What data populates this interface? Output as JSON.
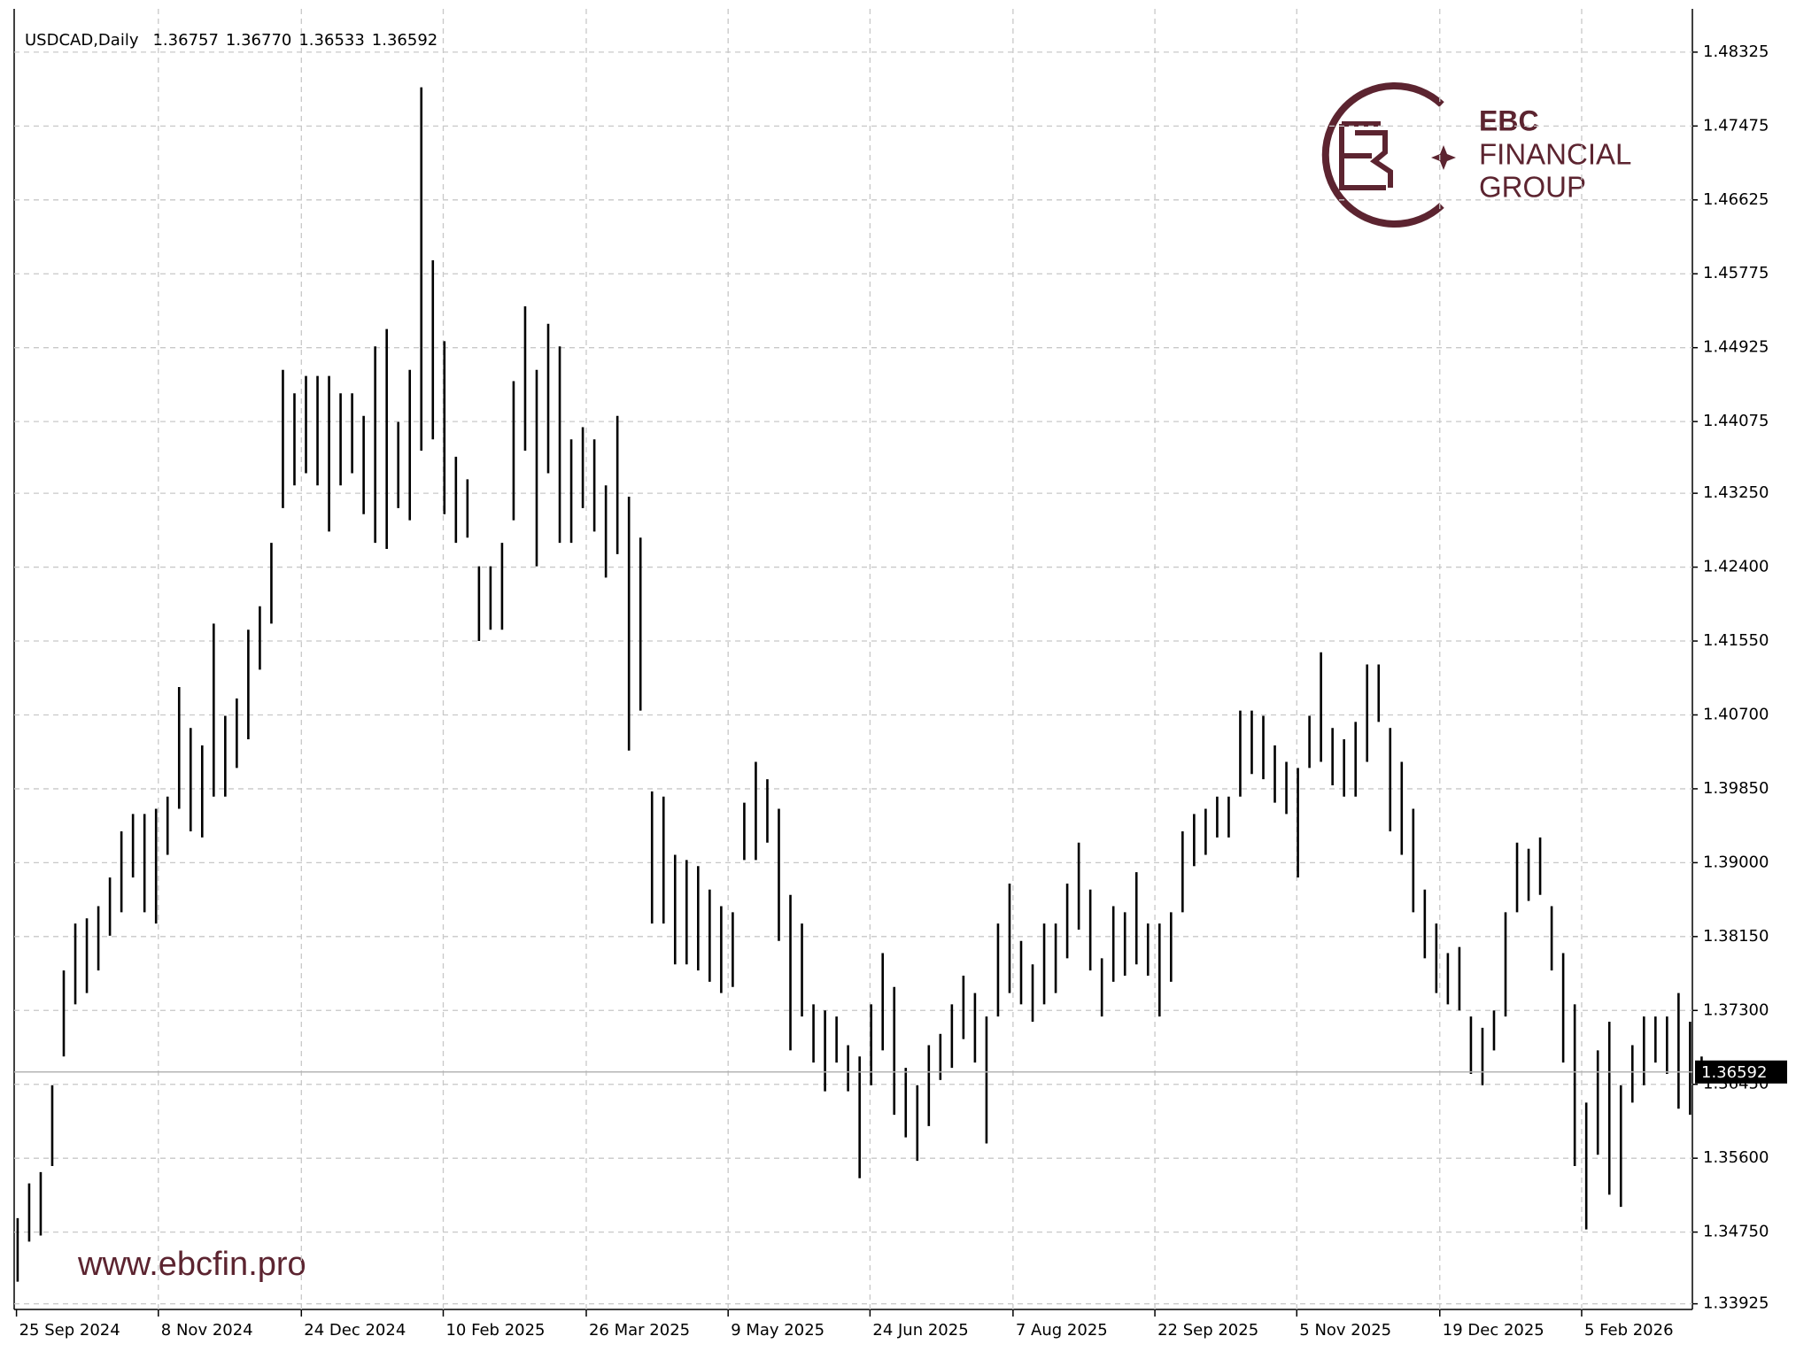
{
  "chart_data": {
    "type": "ohlc",
    "title": "USDCAD,Daily",
    "ohlc": [
      1.36757,
      {
        "value": 1.3677,
        "label": "1.36770"
      },
      1.36533,
      1.36592
    ],
    "watermark": {
      "brand": "EBC",
      "line2": "FINANCIAL",
      "line3": "GROUP",
      "url": "www.ebcfin.pro"
    },
    "high": [
      1.3491,
      1.3531,
      1.3544,
      1.3644,
      1.3776,
      1.383,
      1.3836,
      1.385,
      1.3883,
      1.3936,
      1.3956,
      1.3956,
      1.3962,
      1.3976,
      1.4102,
      1.4055,
      1.4035,
      1.4175,
      1.4069,
      1.4089,
      1.4168,
      1.4195,
      1.4268,
      1.4467,
      1.444,
      1.446,
      1.446,
      1.446,
      1.444,
      1.444,
      1.4414,
      1.4494,
      1.4514,
      1.4407,
      1.4467,
      1.4792,
      1.4593,
      1.45,
      1.4367,
      1.4341,
      1.4241,
      1.4241,
      1.4268,
      1.4454,
      1.454,
      1.4467,
      1.452,
      1.4494,
      1.4387,
      1.4401,
      1.4387,
      1.4334,
      1.4414,
      1.4321,
      1.4274,
      1.3982,
      1.3976,
      1.3909,
      1.3903,
      1.3896,
      1.3869,
      1.385,
      1.3843,
      1.3969,
      1.4016,
      1.3996,
      1.3962,
      1.3863,
      1.383,
      1.3737,
      1.373,
      1.3723,
      1.369,
      1.3677,
      1.3737,
      1.3796,
      1.3757,
      1.3664,
      1.3644,
      1.369,
      1.3703,
      1.3737,
      1.377,
      1.375,
      1.3723,
      1.383,
      1.3876,
      1.381,
      1.3783,
      1.383,
      1.383,
      1.3876,
      1.3923,
      1.3869,
      1.379,
      1.385,
      1.3843,
      1.3889,
      1.383,
      1.383,
      1.3843,
      1.3936,
      1.3956,
      1.3962,
      1.3976,
      1.3976,
      1.4075,
      1.4075,
      1.4069,
      1.4035,
      1.4016,
      1.4009,
      1.4069,
      1.4142,
      1.4055,
      1.4042,
      1.4062,
      1.4128,
      1.4128,
      1.4055,
      1.4016,
      1.3962,
      1.3869,
      1.383,
      1.3796,
      1.3803,
      1.3723,
      1.371,
      1.373,
      1.3843,
      1.3923,
      1.3916,
      1.3929,
      1.385,
      1.3796,
      1.3737,
      1.3624,
      1.3684,
      1.3717,
      1.3644,
      1.369,
      1.3723,
      1.3723,
      1.3723,
      1.375,
      1.3717,
      1.3677
    ],
    "low": [
      1.3418,
      1.3464,
      1.3471,
      1.3551,
      1.3677,
      1.3737,
      1.375,
      1.3776,
      1.3816,
      1.3843,
      1.3883,
      1.3843,
      1.383,
      1.3909,
      1.3962,
      1.3936,
      1.3929,
      1.3976,
      1.3976,
      1.4009,
      1.4042,
      1.4122,
      1.4175,
      1.4308,
      1.4334,
      1.4348,
      1.4334,
      1.4281,
      1.4334,
      1.4348,
      1.4301,
      1.4268,
      1.4261,
      1.4308,
      1.4294,
      1.4374,
      1.4387,
      1.4301,
      1.4268,
      1.4274,
      1.4155,
      1.4168,
      1.4168,
      1.4294,
      1.4374,
      1.4241,
      1.4348,
      1.4268,
      1.4268,
      1.4308,
      1.4281,
      1.4228,
      1.4255,
      1.4029,
      1.4075,
      1.383,
      1.383,
      1.3783,
      1.3783,
      1.3776,
      1.3763,
      1.375,
      1.3757,
      1.3903,
      1.3903,
      1.3923,
      1.381,
      1.3684,
      1.3723,
      1.367,
      1.3637,
      1.367,
      1.3637,
      1.3537,
      1.3644,
      1.3684,
      1.361,
      1.3584,
      1.3557,
      1.3597,
      1.365,
      1.3664,
      1.3697,
      1.367,
      1.3577,
      1.3723,
      1.375,
      1.3737,
      1.3717,
      1.3737,
      1.375,
      1.379,
      1.3823,
      1.3776,
      1.3723,
      1.3763,
      1.377,
      1.3783,
      1.377,
      1.3723,
      1.3763,
      1.3843,
      1.3896,
      1.3909,
      1.3929,
      1.3929,
      1.3976,
      1.4002,
      1.3996,
      1.3969,
      1.3956,
      1.3883,
      1.4009,
      1.4016,
      1.3989,
      1.3976,
      1.3976,
      1.4016,
      1.4062,
      1.3936,
      1.3909,
      1.3843,
      1.379,
      1.375,
      1.3737,
      1.373,
      1.3657,
      1.3644,
      1.3684,
      1.3723,
      1.3843,
      1.3856,
      1.3863,
      1.3776,
      1.367,
      1.3551,
      1.3478,
      1.3564,
      1.3518,
      1.3504,
      1.3624,
      1.3644,
      1.367,
      1.3657,
      1.3617,
      1.361,
      1.365
    ],
    "xlim": [
      -0.3,
      145.2
    ],
    "xticks": [
      {
        "value": -0.1,
        "label": "25 Sep 2024"
      },
      {
        "value": 12.2,
        "label": "8 Nov 2024"
      },
      {
        "value": 24.6,
        "label": "24 Dec 2024"
      },
      {
        "value": 36.9,
        "label": "10 Feb 2025"
      },
      {
        "value": 49.3,
        "label": "26 Mar 2025"
      },
      {
        "value": 61.6,
        "label": "9 May 2025"
      },
      {
        "value": 73.9,
        "label": "24 Jun 2025"
      },
      {
        "value": 86.3,
        "label": "7 Aug 2025"
      },
      {
        "value": 98.6,
        "label": "22 Sep 2025"
      },
      {
        "value": 110.9,
        "label": "5 Nov 2025"
      },
      {
        "value": 123.3,
        "label": "19 Dec 2025"
      },
      {
        "value": 135.6,
        "label": "5 Feb 2026"
      }
    ],
    "ylim": [
      1.3386,
      1.4866
    ],
    "yticks": [
      1.48325,
      1.47475,
      1.46625,
      1.45775,
      1.44925,
      1.44075,
      {
        "value": 1.4325,
        "label": "1.43250"
      },
      {
        "value": 1.424,
        "label": "1.42400"
      },
      {
        "value": 1.4155,
        "label": "1.41550"
      },
      {
        "value": 1.407,
        "label": "1.40700"
      },
      {
        "value": 1.3985,
        "label": "1.39850"
      },
      {
        "value": 1.39,
        "label": "1.39000"
      },
      {
        "value": 1.3815,
        "label": "1.38150"
      },
      {
        "value": 1.373,
        "label": "1.37300"
      },
      {
        "value": 1.3645,
        "label": "1.36450"
      },
      {
        "value": 1.356,
        "label": "1.35600"
      },
      {
        "value": 1.3475,
        "label": "1.34750"
      },
      1.33925
    ],
    "grid": true
  }
}
